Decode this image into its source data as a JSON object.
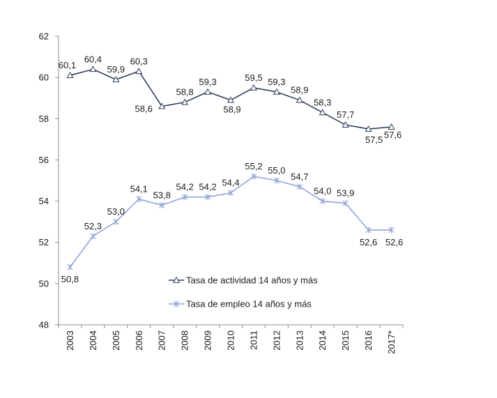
{
  "chart_data": {
    "type": "line",
    "categories": [
      "2003",
      "2004",
      "2005",
      "2006",
      "2007",
      "2008",
      "2009",
      "2010",
      "2011",
      "2012",
      "2013",
      "2014",
      "2015",
      "2016",
      "2017*"
    ],
    "ylim": [
      48,
      62
    ],
    "yticks": [
      48,
      50,
      52,
      54,
      56,
      58,
      60,
      62
    ],
    "grid": false,
    "legend_position": "lower-right",
    "series": [
      {
        "name": "Tasa de actividad 14 años y más",
        "marker": "triangle",
        "color": "#2e3d5c",
        "values": [
          60.1,
          60.4,
          59.9,
          60.3,
          58.6,
          58.8,
          59.3,
          58.9,
          59.5,
          59.3,
          58.9,
          58.3,
          57.7,
          57.5,
          57.6
        ],
        "labels": [
          "60,1",
          "60,4",
          "59,9",
          "60,3",
          "58,6",
          "58,8",
          "59,3",
          "58,9",
          "59,5",
          "59,3",
          "58,9",
          "58,3",
          "57,7",
          "57,5",
          "57,6"
        ]
      },
      {
        "name": "Tasa de empleo 14 años y más",
        "marker": "star",
        "color": "#8fa3d4",
        "values": [
          50.8,
          52.3,
          53.0,
          54.1,
          53.8,
          54.2,
          54.2,
          54.4,
          55.2,
          55.0,
          54.7,
          54.0,
          53.9,
          52.6,
          52.6
        ],
        "labels": [
          "50,8",
          "52,3",
          "53,0",
          "54,1",
          "53,8",
          "54,2",
          "54,2",
          "54,4",
          "55,2",
          "55,0",
          "54,7",
          "54,0",
          "53,9",
          "52,6",
          "52,6"
        ]
      }
    ]
  }
}
